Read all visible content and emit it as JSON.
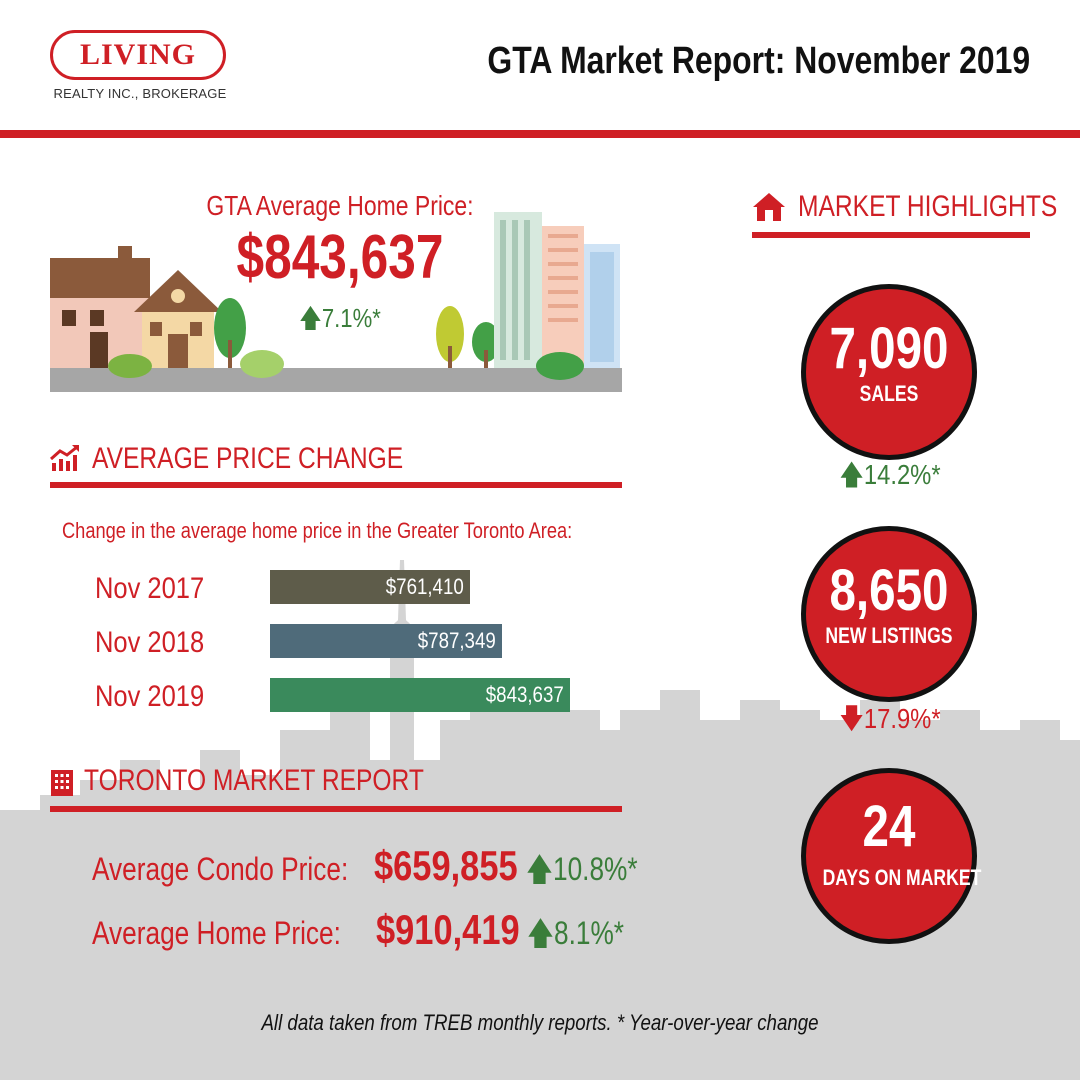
{
  "brand": {
    "logo_word": "LIVING",
    "logo_sub": "REALTY INC., BROKERAGE",
    "color": "#cf1f25"
  },
  "header": {
    "title": "GTA Market Report: November 2019"
  },
  "hero": {
    "label": "GTA Average Home Price:",
    "price": "$843,637",
    "change": "7.1%*",
    "change_direction": "up"
  },
  "price_change": {
    "heading": "AVERAGE PRICE CHANGE",
    "icon": "trend-up-chart-icon",
    "caption": "Change in the average home price in the Greater Toronto Area:",
    "chart_data": {
      "type": "bar",
      "orientation": "horizontal",
      "categories": [
        "Nov 2017",
        "Nov 2018",
        "Nov 2019"
      ],
      "values": [
        761410,
        787349,
        843637
      ],
      "value_labels": [
        "$761,410",
        "$787,349",
        "$843,637"
      ],
      "colors": [
        "#5e5c4a",
        "#4f6b7a",
        "#3a8a5c"
      ],
      "title": "",
      "xlabel": "",
      "ylabel": ""
    }
  },
  "toronto": {
    "heading": "TORONTO MARKET REPORT",
    "icon": "building-icon",
    "condo": {
      "label": "Average Condo Price:",
      "price": "$659,855",
      "change": "10.8%*",
      "direction": "up"
    },
    "home": {
      "label": "Average Home Price:",
      "price": "$910,419",
      "change": "8.1%*",
      "direction": "up"
    }
  },
  "highlights": {
    "heading": "MARKET HIGHLIGHTS",
    "icon": "home-icon",
    "items": [
      {
        "value": "7,090",
        "label": "SALES",
        "change": "14.2%*",
        "direction": "up"
      },
      {
        "value": "8,650",
        "label": "NEW LISTINGS",
        "change": "17.9%*",
        "direction": "down"
      },
      {
        "value": "24",
        "label": "DAYS ON MARKET"
      }
    ]
  },
  "footnote": "All data taken from TREB monthly reports.  * Year-over-year change",
  "colors": {
    "up": "#3a7d3a",
    "down": "#cf1f25",
    "accent": "#cf1f25"
  }
}
